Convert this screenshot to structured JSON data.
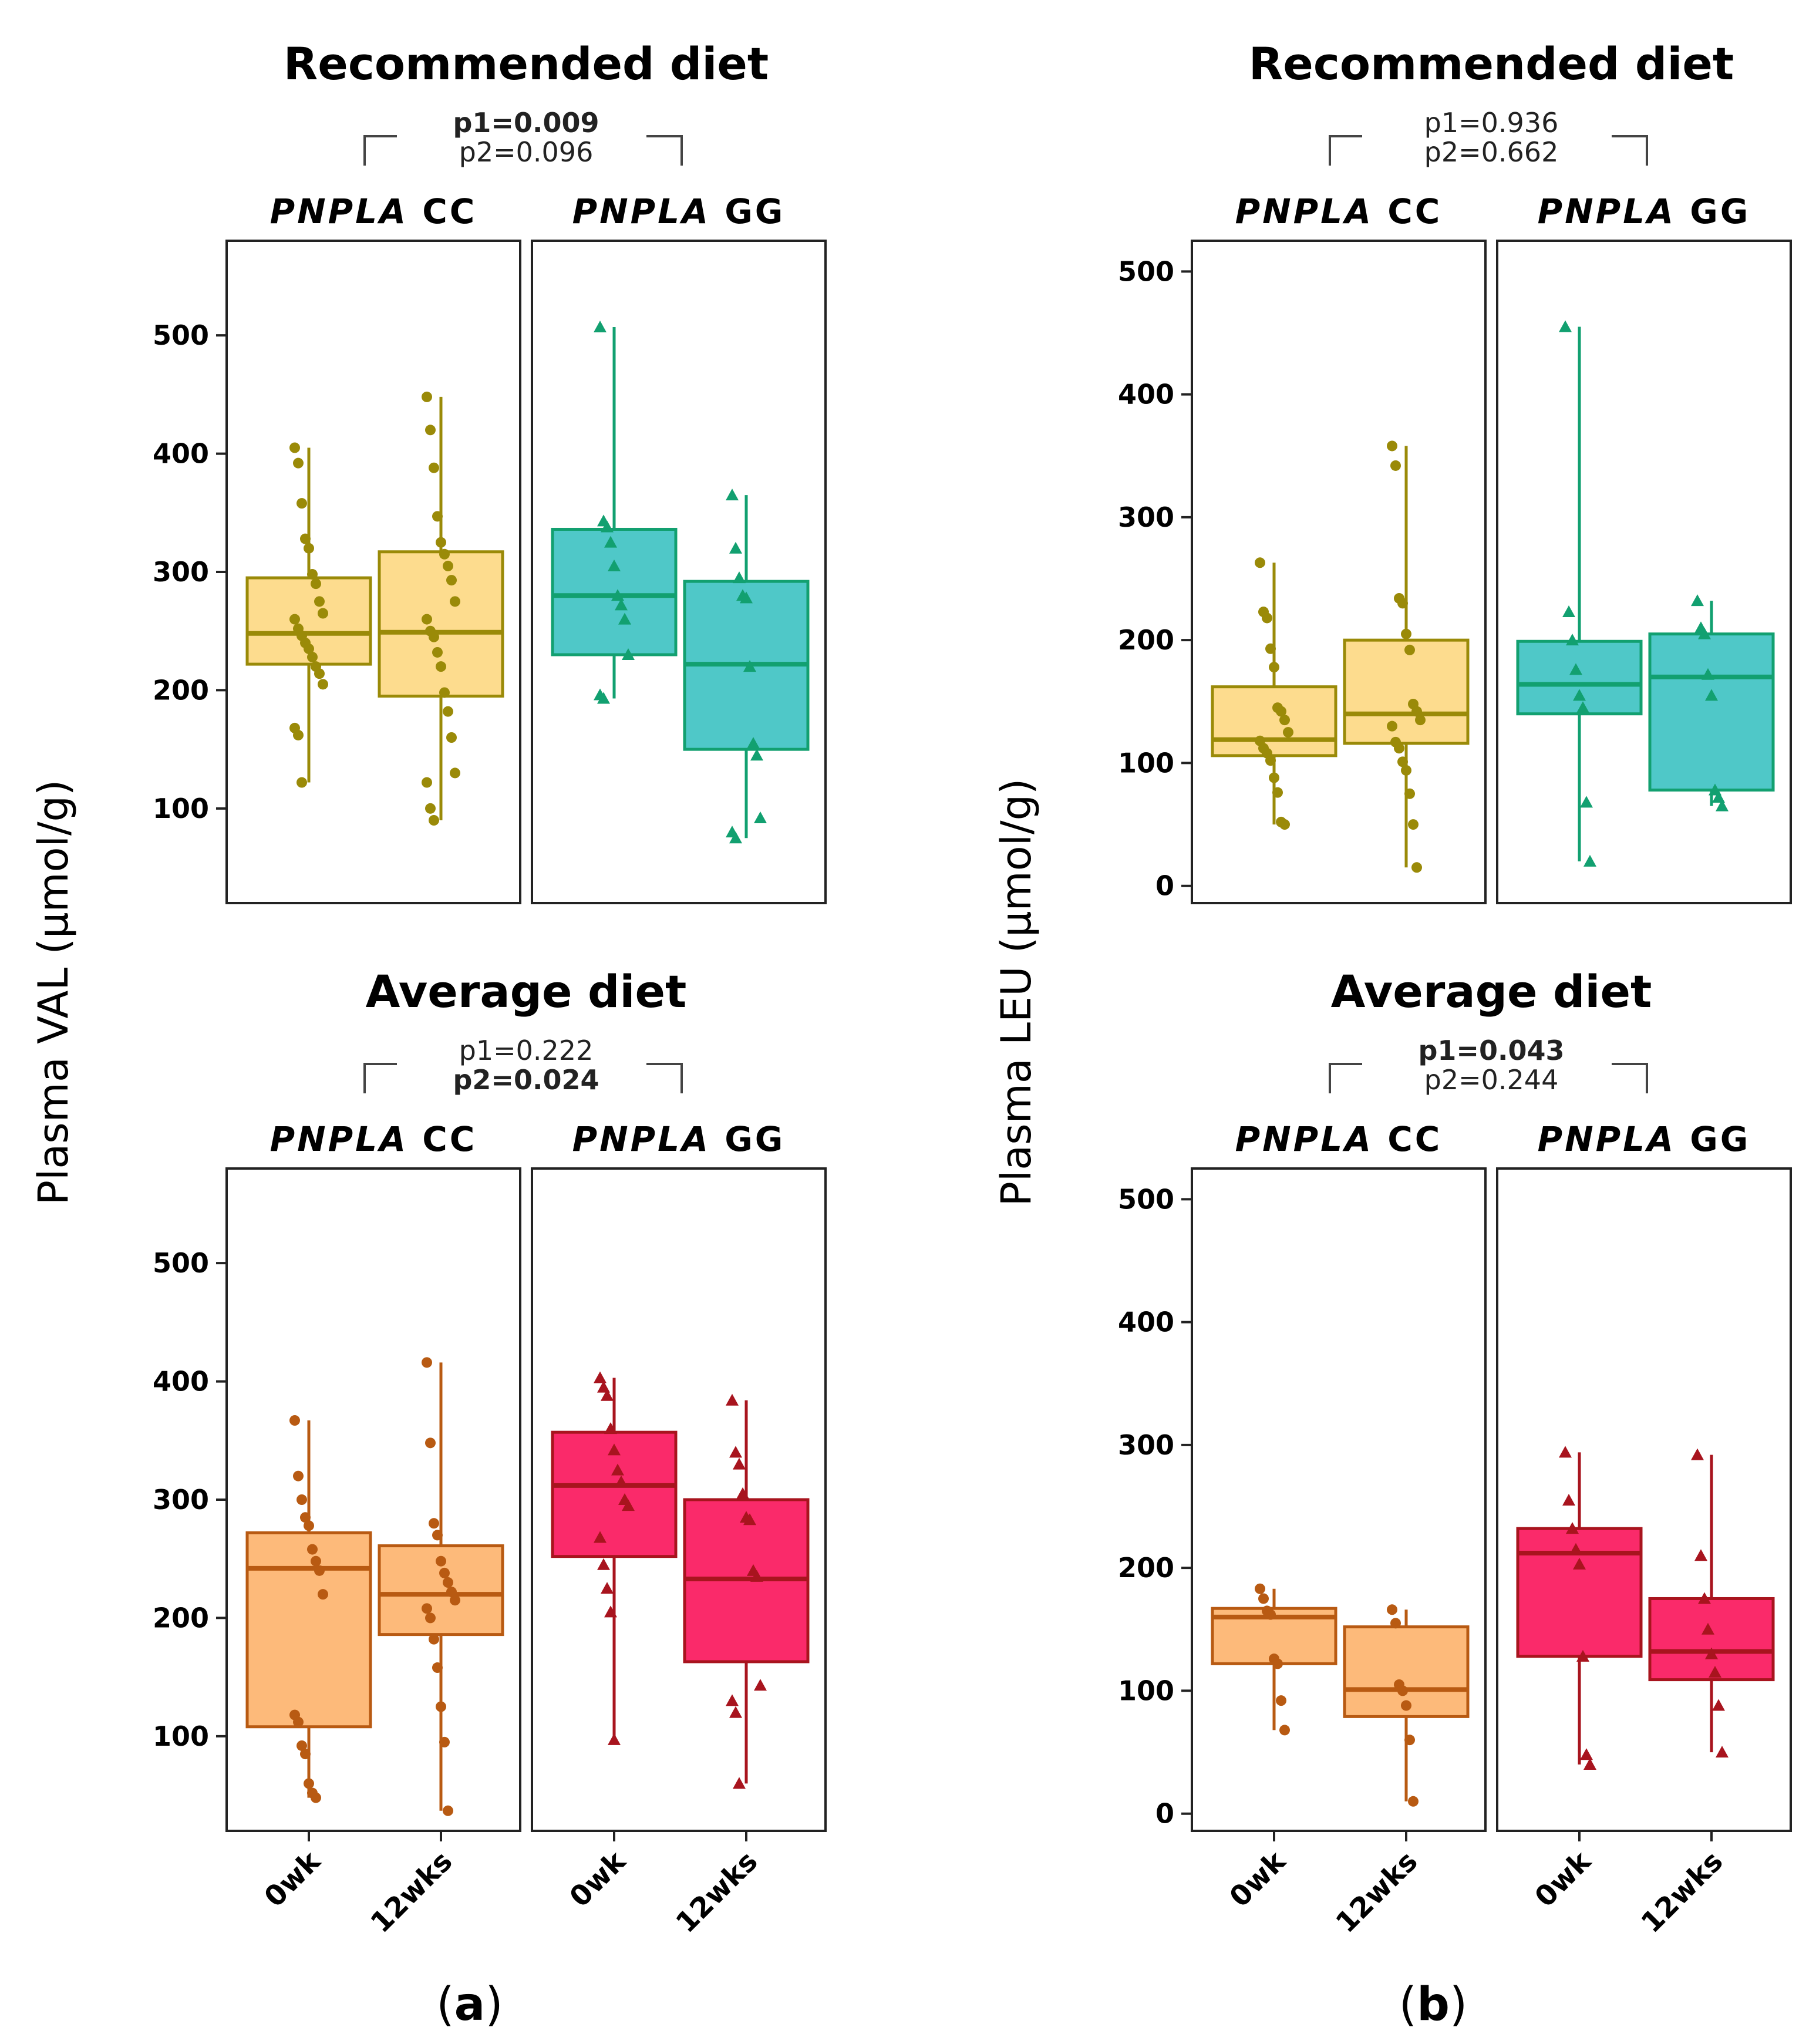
{
  "figure": {
    "labels": [
      "(a)",
      "(b)"
    ],
    "panel_labels": {
      "a_open": "(",
      "a_letter": "a",
      "a_close": ")",
      "b_open": "(",
      "b_letter": "b",
      "b_close": ")"
    }
  },
  "colors": {
    "rec_cc_fill": "#FDDC8E",
    "rec_cc_line": "#9A8A08",
    "rec_gg_fill": "#4FC8C8",
    "rec_gg_line": "#12A070",
    "avg_cc_fill": "#FDBA7A",
    "avg_cc_line": "#B85A12",
    "avg_gg_fill": "#FA2A6A",
    "avg_gg_line": "#A8141E"
  },
  "chart_data": [
    {
      "type": "box",
      "id": "val_recommended",
      "title": "Recommended diet",
      "ylabel": "Plasma  VAL (µmol/g)",
      "ylim": [
        20,
        580
      ],
      "yticks": [
        100,
        200,
        300,
        400,
        500
      ],
      "categories": [
        "0wk",
        "12wks"
      ],
      "pvalues": [
        {
          "text": "p1=0.009",
          "bold": true
        },
        {
          "text": "p2=0.096",
          "bold": false
        }
      ],
      "facets": [
        {
          "name": "PNPLA",
          "genotype": "CC",
          "marker": "circle",
          "boxes": [
            {
              "x": "0wk",
              "q1": 222,
              "median": 248,
              "q3": 295,
              "low": 122,
              "high": 405,
              "points": [
                405,
                392,
                358,
                328,
                320,
                298,
                290,
                275,
                265,
                260,
                252,
                246,
                240,
                235,
                228,
                220,
                214,
                205,
                168,
                162,
                122
              ]
            },
            {
              "x": "12wks",
              "q1": 195,
              "median": 249,
              "q3": 317,
              "low": 90,
              "high": 448,
              "points": [
                448,
                420,
                388,
                347,
                325,
                315,
                305,
                293,
                275,
                260,
                250,
                245,
                232,
                220,
                198,
                182,
                160,
                130,
                122,
                100,
                90
              ]
            }
          ]
        },
        {
          "name": "PNPLA",
          "genotype": "GG",
          "marker": "triangle",
          "boxes": [
            {
              "x": "0wk",
              "q1": 230,
              "median": 280,
              "q3": 336,
              "low": 193,
              "high": 507,
              "points": [
                507,
                343,
                338,
                325,
                305,
                280,
                272,
                260,
                230,
                196,
                193
              ]
            },
            {
              "x": "12wks",
              "q1": 150,
              "median": 222,
              "q3": 292,
              "low": 75,
              "high": 365,
              "points": [
                365,
                320,
                295,
                280,
                278,
                220,
                155,
                145,
                92,
                80,
                75
              ]
            }
          ]
        }
      ]
    },
    {
      "type": "box",
      "id": "leu_recommended",
      "title": "Recommended diet",
      "ylabel": "Plasma  LEU (µmol/g)",
      "ylim": [
        -14,
        525
      ],
      "yticks": [
        0,
        100,
        200,
        300,
        400,
        500
      ],
      "categories": [
        "0wk",
        "12wks"
      ],
      "pvalues": [
        {
          "text": "p1=0.936",
          "bold": false
        },
        {
          "text": "p2=0.662",
          "bold": false
        }
      ],
      "facets": [
        {
          "name": "PNPLA",
          "genotype": "CC",
          "marker": "circle",
          "boxes": [
            {
              "x": "0wk",
              "q1": 106,
              "median": 119,
              "q3": 162,
              "low": 50,
              "high": 263,
              "points": [
                263,
                223,
                218,
                193,
                178,
                145,
                142,
                135,
                125,
                118,
                112,
                108,
                102,
                88,
                76,
                52,
                50
              ]
            },
            {
              "x": "12wks",
              "q1": 116,
              "median": 140,
              "q3": 200,
              "low": 15,
              "high": 358,
              "points": [
                358,
                342,
                234,
                230,
                205,
                192,
                148,
                142,
                135,
                130,
                117,
                112,
                101,
                94,
                75,
                50,
                15
              ]
            }
          ]
        },
        {
          "name": "PNPLA",
          "genotype": "GG",
          "marker": "triangle",
          "boxes": [
            {
              "x": "0wk",
              "q1": 140,
              "median": 164,
              "q3": 199,
              "low": 20,
              "high": 455,
              "points": [
                455,
                223,
                200,
                176,
                155,
                145,
                68,
                20
              ]
            },
            {
              "x": "12wks",
              "q1": 78,
              "median": 170,
              "q3": 205,
              "low": 65,
              "high": 232,
              "points": [
                232,
                210,
                205,
                172,
                155,
                78,
                72,
                65
              ]
            }
          ]
        }
      ]
    },
    {
      "type": "box",
      "id": "val_average",
      "title": "Average diet",
      "ylabel": "Plasma  VAL (µmol/g)",
      "ylim": [
        20,
        580
      ],
      "yticks": [
        100,
        200,
        300,
        400,
        500
      ],
      "categories": [
        "0wk",
        "12wks"
      ],
      "pvalues": [
        {
          "text": "p1=0.222",
          "bold": false
        },
        {
          "text": "p2=0.024",
          "bold": true
        }
      ],
      "facets": [
        {
          "name": "PNPLA",
          "genotype": "CC",
          "marker": "circle",
          "boxes": [
            {
              "x": "0wk",
              "q1": 108,
              "median": 242,
              "q3": 272,
              "low": 48,
              "high": 367,
              "points": [
                367,
                320,
                300,
                285,
                278,
                258,
                248,
                240,
                220,
                118,
                112,
                92,
                85,
                60,
                52,
                48
              ]
            },
            {
              "x": "12wks",
              "q1": 186,
              "median": 220,
              "q3": 261,
              "low": 37,
              "high": 416,
              "points": [
                416,
                348,
                280,
                270,
                248,
                238,
                230,
                222,
                215,
                208,
                200,
                182,
                158,
                125,
                95,
                37
              ]
            }
          ]
        },
        {
          "name": "PNPLA",
          "genotype": "GG",
          "marker": "triangle",
          "boxes": [
            {
              "x": "0wk",
              "q1": 252,
              "median": 312,
              "q3": 357,
              "low": 97,
              "high": 403,
              "points": [
                403,
                395,
                388,
                360,
                342,
                325,
                315,
                300,
                295,
                268,
                245,
                225,
                205,
                97
              ]
            },
            {
              "x": "12wks",
              "q1": 163,
              "median": 233,
              "q3": 300,
              "low": 60,
              "high": 384,
              "points": [
                384,
                340,
                330,
                305,
                285,
                283,
                240,
                235,
                143,
                130,
                120,
                60
              ]
            }
          ]
        }
      ]
    },
    {
      "type": "box",
      "id": "leu_average",
      "title": "Average diet",
      "ylabel": "Plasma  LEU (µmol/g)",
      "ylim": [
        -14,
        525
      ],
      "yticks": [
        0,
        100,
        200,
        300,
        400,
        500
      ],
      "categories": [
        "0wk",
        "12wks"
      ],
      "pvalues": [
        {
          "text": "p1=0.043",
          "bold": true
        },
        {
          "text": "p2=0.244",
          "bold": false
        }
      ],
      "facets": [
        {
          "name": "PNPLA",
          "genotype": "CC",
          "marker": "circle",
          "boxes": [
            {
              "x": "0wk",
              "q1": 122,
              "median": 160,
              "q3": 167,
              "low": 68,
              "high": 183,
              "points": [
                183,
                175,
                165,
                162,
                126,
                122,
                92,
                68
              ]
            },
            {
              "x": "12wks",
              "q1": 79,
              "median": 101,
              "q3": 152,
              "low": 10,
              "high": 166,
              "points": [
                166,
                155,
                105,
                100,
                88,
                60,
                10
              ]
            }
          ]
        },
        {
          "name": "PNPLA",
          "genotype": "GG",
          "marker": "triangle",
          "boxes": [
            {
              "x": "0wk",
              "q1": 128,
              "median": 212,
              "q3": 232,
              "low": 40,
              "high": 294,
              "points": [
                294,
                255,
                232,
                215,
                203,
                128,
                48,
                40
              ]
            },
            {
              "x": "12wks",
              "q1": 109,
              "median": 132,
              "q3": 175,
              "low": 50,
              "high": 292,
              "points": [
                292,
                210,
                175,
                150,
                130,
                115,
                88,
                50
              ]
            }
          ]
        }
      ]
    }
  ]
}
